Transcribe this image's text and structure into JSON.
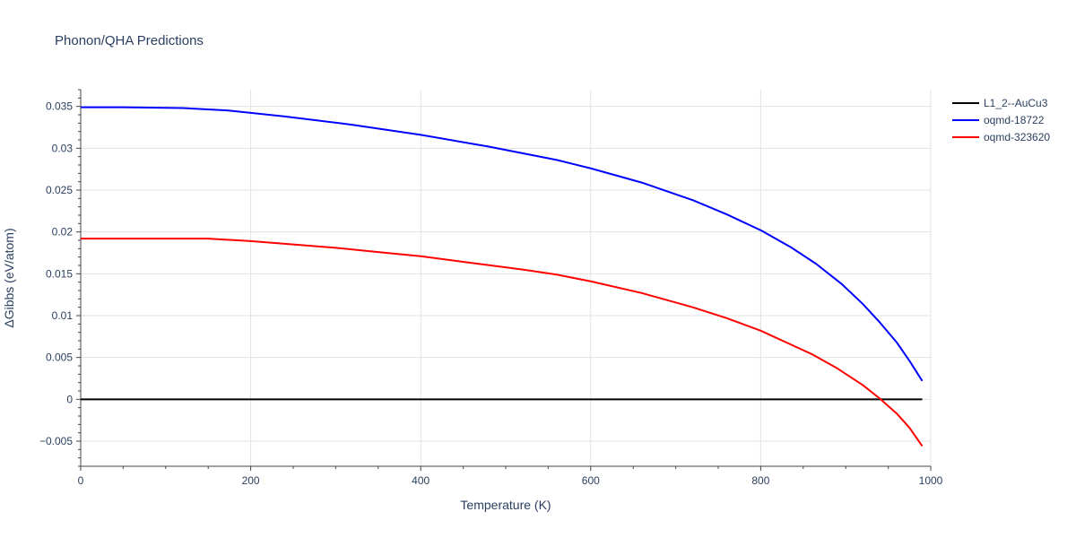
{
  "chart_data": {
    "type": "line",
    "title": "Phonon/QHA Predictions",
    "xlabel": "Temperature (K)",
    "ylabel": "ΔGibbs (eV/atom)",
    "xlim": [
      0,
      1000
    ],
    "ylim": [
      -0.008,
      0.037
    ],
    "x_ticks": [
      0,
      200,
      400,
      600,
      800,
      1000
    ],
    "x_tick_labels": [
      "0",
      "200",
      "400",
      "600",
      "800",
      "1000"
    ],
    "y_ticks": [
      -0.005,
      0,
      0.005,
      0.01,
      0.015,
      0.02,
      0.025,
      0.03,
      0.035
    ],
    "y_tick_labels": [
      "−0.005",
      "0",
      "0.005",
      "0.01",
      "0.015",
      "0.02",
      "0.025",
      "0.03",
      "0.035"
    ],
    "grid": true,
    "legend_position": "top-right",
    "series": [
      {
        "name": "L1_2--AuCu3",
        "color": "#000000",
        "x": [
          0,
          990
        ],
        "y": [
          0,
          0
        ]
      },
      {
        "name": "oqmd-18722",
        "color": "#0000ff",
        "x": [
          0,
          50,
          120,
          175,
          240,
          320,
          400,
          480,
          560,
          600,
          660,
          720,
          760,
          800,
          835,
          865,
          895,
          920,
          940,
          960,
          975,
          990
        ],
        "y": [
          0.0349,
          0.0349,
          0.0348,
          0.0345,
          0.0338,
          0.0328,
          0.0316,
          0.0302,
          0.0286,
          0.0276,
          0.0259,
          0.0238,
          0.0221,
          0.0202,
          0.0182,
          0.0162,
          0.0138,
          0.0114,
          0.0092,
          0.0068,
          0.0046,
          0.0022
        ]
      },
      {
        "name": "oqmd-323620",
        "color": "#ff0000",
        "x": [
          0,
          50,
          100,
          150,
          200,
          250,
          300,
          350,
          400,
          460,
          520,
          560,
          600,
          660,
          720,
          760,
          800,
          830,
          860,
          890,
          920,
          940,
          960,
          975,
          990
        ],
        "y": [
          0.0192,
          0.0192,
          0.0192,
          0.0192,
          0.0189,
          0.0185,
          0.0181,
          0.0176,
          0.0171,
          0.0163,
          0.0155,
          0.0149,
          0.0141,
          0.0127,
          0.011,
          0.0097,
          0.0082,
          0.0068,
          0.0054,
          0.0037,
          0.0017,
          0.0001,
          -0.0017,
          -0.0034,
          -0.0056
        ]
      }
    ]
  }
}
